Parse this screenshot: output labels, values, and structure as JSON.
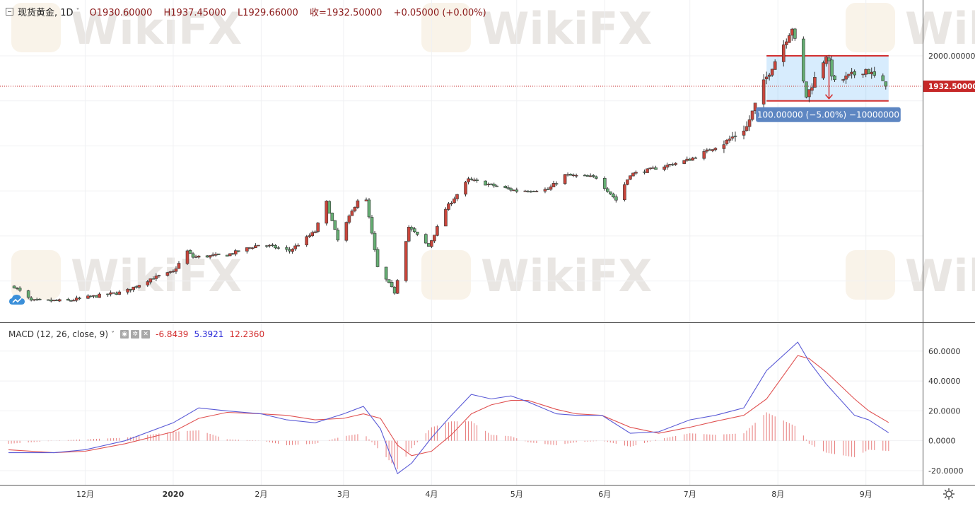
{
  "header": {
    "symbol": "现货黄金, 1D",
    "open": "O1930.60000",
    "high": "H1937.45000",
    "low": "L1929.66000",
    "close": "收=1932.50000",
    "change": "+0.05000 (+0.00%)"
  },
  "watermark": "WikiFX",
  "macd_header": {
    "title": "MACD (12, 26, close, 9)",
    "value_hist": "-6.8439",
    "value_macd": "5.3921",
    "value_signal": "12.2360"
  },
  "colors": {
    "up": "#c9453b",
    "down": "#65ae73",
    "macd_line": "#5a5ad6",
    "signal_line": "#e05252",
    "range_box": "#2196f3",
    "range_border": "#d32f2f",
    "price_label": "#c62828",
    "measure_label": "#5d86c2"
  },
  "icons": {
    "collapse": "collapse-icon",
    "cloud": "cloud-icon",
    "settings": "gear-icon"
  },
  "chart_data": [
    {
      "type": "candlestick",
      "title": "现货黄金, 1D",
      "x_tick_labels": [
        "12月",
        "2020",
        "2月",
        "3月",
        "4月",
        "5月",
        "6月",
        "7月",
        "8月",
        "9月"
      ],
      "y_tick_labels": [
        "2000.00000"
      ],
      "ylim": [
        1410,
        2080
      ],
      "y_major": 2000,
      "last_price": 1932.5,
      "last_price_label": "1932.50000",
      "close_path": [
        [
          "2019-11-06",
          1488
        ],
        [
          "2019-11-12",
          1456
        ],
        [
          "2019-11-25",
          1456
        ],
        [
          "2019-12-01",
          1463
        ],
        [
          "2019-12-15",
          1476
        ],
        [
          "2019-12-24",
          1505
        ],
        [
          "2020-01-01",
          1520
        ],
        [
          "2020-01-06",
          1566
        ],
        [
          "2020-01-08",
          1553
        ],
        [
          "2020-01-20",
          1558
        ],
        [
          "2020-02-01",
          1582
        ],
        [
          "2020-02-11",
          1567
        ],
        [
          "2020-02-20",
          1610
        ],
        [
          "2020-02-24",
          1675
        ],
        [
          "2020-02-28",
          1590
        ],
        [
          "2020-03-06",
          1680
        ],
        [
          "2020-03-09",
          1678
        ],
        [
          "2020-03-13",
          1530
        ],
        [
          "2020-03-19",
          1475
        ],
        [
          "2020-03-24",
          1620
        ],
        [
          "2020-03-31",
          1577
        ],
        [
          "2020-04-06",
          1660
        ],
        [
          "2020-04-14",
          1725
        ],
        [
          "2020-04-22",
          1713
        ],
        [
          "2020-05-01",
          1700
        ],
        [
          "2020-05-12",
          1703
        ],
        [
          "2020-05-18",
          1735
        ],
        [
          "2020-05-29",
          1730
        ],
        [
          "2020-06-05",
          1680
        ],
        [
          "2020-06-10",
          1737
        ],
        [
          "2020-06-22",
          1755
        ],
        [
          "2020-07-01",
          1770
        ],
        [
          "2020-07-14",
          1810
        ],
        [
          "2020-07-21",
          1842
        ],
        [
          "2020-07-27",
          1940
        ],
        [
          "2020-08-06",
          2063
        ],
        [
          "2020-08-11",
          1910
        ],
        [
          "2020-08-18",
          2002
        ],
        [
          "2020-08-21",
          1940
        ],
        [
          "2020-09-01",
          1970
        ],
        [
          "2020-09-08",
          1932.5
        ]
      ],
      "range_box": {
        "from": "2020-07-28",
        "to": "2020-09-09",
        "top": 2000,
        "bottom": 1900
      },
      "measure_label": "100.00000 (−5.00%) −10000000"
    },
    {
      "type": "line",
      "title": "MACD (12, 26, close, 9)",
      "y_tick_labels": [
        "60.0000",
        "40.0000",
        "20.0000",
        "0.0000",
        "-20.0000"
      ],
      "ylim": [
        -29,
        67
      ],
      "series": [
        {
          "name": "MACD",
          "points": [
            [
              "2019-11-04",
              -8
            ],
            [
              "2019-11-20",
              -8
            ],
            [
              "2019-12-01",
              -6
            ],
            [
              "2019-12-15",
              0
            ],
            [
              "2020-01-01",
              12
            ],
            [
              "2020-01-10",
              22
            ],
            [
              "2020-01-20",
              20
            ],
            [
              "2020-02-01",
              18
            ],
            [
              "2020-02-10",
              14
            ],
            [
              "2020-02-20",
              12
            ],
            [
              "2020-03-01",
              18
            ],
            [
              "2020-03-08",
              23
            ],
            [
              "2020-03-14",
              8
            ],
            [
              "2020-03-20",
              -22
            ],
            [
              "2020-03-25",
              -15
            ],
            [
              "2020-04-01",
              2
            ],
            [
              "2020-04-08",
              17
            ],
            [
              "2020-04-15",
              31
            ],
            [
              "2020-04-22",
              28
            ],
            [
              "2020-04-29",
              30
            ],
            [
              "2020-05-05",
              26
            ],
            [
              "2020-05-15",
              18
            ],
            [
              "2020-05-22",
              17
            ],
            [
              "2020-05-31",
              17
            ],
            [
              "2020-06-10",
              5
            ],
            [
              "2020-06-20",
              6
            ],
            [
              "2020-07-01",
              14
            ],
            [
              "2020-07-10",
              17
            ],
            [
              "2020-07-20",
              22
            ],
            [
              "2020-07-28",
              47
            ],
            [
              "2020-08-08",
              66
            ],
            [
              "2020-08-12",
              53
            ],
            [
              "2020-08-18",
              38
            ],
            [
              "2020-08-28",
              17
            ],
            [
              "2020-09-02",
              14
            ],
            [
              "2020-09-09",
              5.3921
            ]
          ]
        },
        {
          "name": "Signal",
          "points": [
            [
              "2019-11-04",
              -6
            ],
            [
              "2019-11-20",
              -8
            ],
            [
              "2019-12-01",
              -7
            ],
            [
              "2019-12-15",
              -2
            ],
            [
              "2020-01-01",
              6
            ],
            [
              "2020-01-10",
              15
            ],
            [
              "2020-01-20",
              19
            ],
            [
              "2020-02-01",
              18
            ],
            [
              "2020-02-10",
              17
            ],
            [
              "2020-02-20",
              14
            ],
            [
              "2020-03-01",
              15
            ],
            [
              "2020-03-08",
              18
            ],
            [
              "2020-03-14",
              15
            ],
            [
              "2020-03-20",
              -3
            ],
            [
              "2020-03-25",
              -10
            ],
            [
              "2020-04-01",
              -7
            ],
            [
              "2020-04-08",
              4
            ],
            [
              "2020-04-15",
              18
            ],
            [
              "2020-04-22",
              24
            ],
            [
              "2020-04-29",
              27
            ],
            [
              "2020-05-05",
              27
            ],
            [
              "2020-05-15",
              21
            ],
            [
              "2020-05-22",
              18
            ],
            [
              "2020-05-31",
              17
            ],
            [
              "2020-06-10",
              9
            ],
            [
              "2020-06-20",
              5
            ],
            [
              "2020-07-01",
              9
            ],
            [
              "2020-07-10",
              13
            ],
            [
              "2020-07-20",
              17
            ],
            [
              "2020-07-28",
              28
            ],
            [
              "2020-08-08",
              57
            ],
            [
              "2020-08-12",
              55
            ],
            [
              "2020-08-18",
              46
            ],
            [
              "2020-08-28",
              28
            ],
            [
              "2020-09-02",
              20
            ],
            [
              "2020-09-09",
              12.236
            ]
          ]
        }
      ]
    }
  ]
}
